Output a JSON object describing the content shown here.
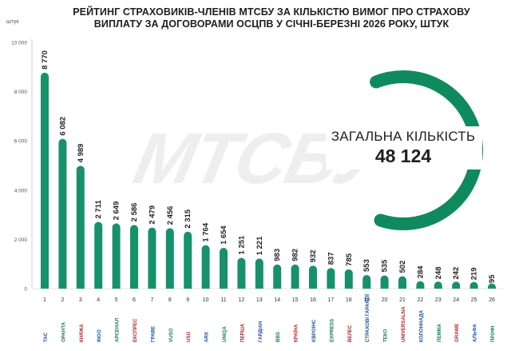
{
  "chart_data": {
    "type": "bar",
    "title": "РЕЙТИНГ СТРАХОВИКІВ-ЧЛЕНІВ МТСБУ ЗА КІЛЬКІСТЮ ВИМОГ ПРО СТРАХОВУ ВИПЛАТУ ЗА ДОГОВОРАМИ ОСЦПВ У СІЧНІ-БЕРЕЗНІ 2026 РОКУ, ШТУК",
    "ylabel": "штук",
    "ylim": [
      0,
      10000
    ],
    "yticks": [
      0,
      2000,
      4000,
      6000,
      8000,
      10000
    ],
    "ytick_labels": [
      "0",
      "2 000",
      "4 000",
      "6 000",
      "8 000",
      "10 000"
    ],
    "categories": [
      "1",
      "2",
      "3",
      "4",
      "5",
      "6",
      "7",
      "8",
      "9",
      "10",
      "11",
      "12",
      "13",
      "14",
      "15",
      "16",
      "17",
      "18",
      "19",
      "20",
      "21",
      "22",
      "23",
      "24",
      "25",
      "26"
    ],
    "values": [
      8770,
      6082,
      4989,
      2711,
      2649,
      2586,
      2479,
      2456,
      2315,
      1764,
      1654,
      1251,
      1221,
      983,
      982,
      932,
      837,
      785,
      553,
      535,
      502,
      284,
      248,
      242,
      219,
      95
    ],
    "value_labels": [
      "8 770",
      "6 082",
      "4 989",
      "2 711",
      "2 649",
      "2 586",
      "2 479",
      "2 456",
      "2 315",
      "1 764",
      "1 654",
      "1 251",
      "1 221",
      "983",
      "982",
      "932",
      "837",
      "785",
      "553",
      "535",
      "502",
      "284",
      "248",
      "242",
      "219",
      "95"
    ],
    "logos": [
      "ТАС",
      "ОРАНТА",
      "КНЯЖА",
      "INGO",
      "АРСЕНАЛ",
      "ЕКСПРЕС",
      "ГРАВЕ",
      "VUSO",
      "USG",
      "ARX",
      "UNIQA",
      "ПЕРША",
      "ГАРДІАН",
      "BBS",
      "КРАЇНА",
      "ЄВРОІНС",
      "EXPRESS",
      "ВЕЛЕС",
      "СТРАХОВІ ГАРАНТІЇ",
      "ТЕКО",
      "UNIVERSALNA",
      "КОЛОННАДА",
      "ЛЕМMA",
      "GRAWE",
      "АЛЬФА",
      "ПРОФІ"
    ],
    "bar_color": "#17916b",
    "grid": false,
    "legend": "none"
  },
  "total": {
    "label": "ЗАГАЛЬНА КІЛЬКІСТЬ",
    "value": "48 124"
  },
  "watermark": "МТСБУ",
  "colors": {
    "accent": "#17916b",
    "ring": "#0f8a5f"
  }
}
